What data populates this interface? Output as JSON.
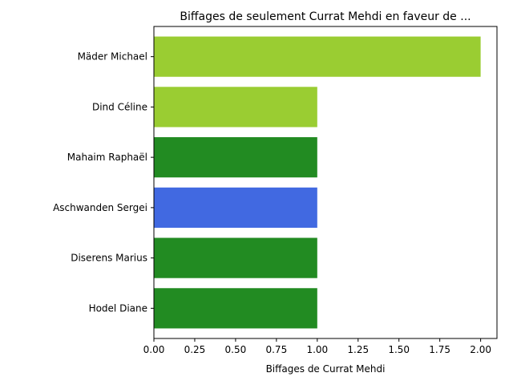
{
  "chart_data": {
    "type": "bar",
    "orientation": "horizontal",
    "title": "Biffages de seulement Currat Mehdi en faveur de ...",
    "xlabel": "Biffages de Currat Mehdi",
    "ylabel": "",
    "xlim": [
      0,
      2.1
    ],
    "xticks": [
      "0.00",
      "0.25",
      "0.50",
      "0.75",
      "1.00",
      "1.25",
      "1.50",
      "1.75",
      "2.00"
    ],
    "grid": false,
    "bars": [
      {
        "label": "Hodel Diane",
        "value": 1,
        "color": "#228b22"
      },
      {
        "label": "Diserens Marius",
        "value": 1,
        "color": "#228b22"
      },
      {
        "label": "Aschwanden Sergei",
        "value": 1,
        "color": "#4169e1"
      },
      {
        "label": "Mahaim Raphaël",
        "value": 1,
        "color": "#228b22"
      },
      {
        "label": "Dind Céline",
        "value": 1,
        "color": "#9acd32"
      },
      {
        "label": "Mäder Michael",
        "value": 2,
        "color": "#9acd32"
      }
    ]
  }
}
